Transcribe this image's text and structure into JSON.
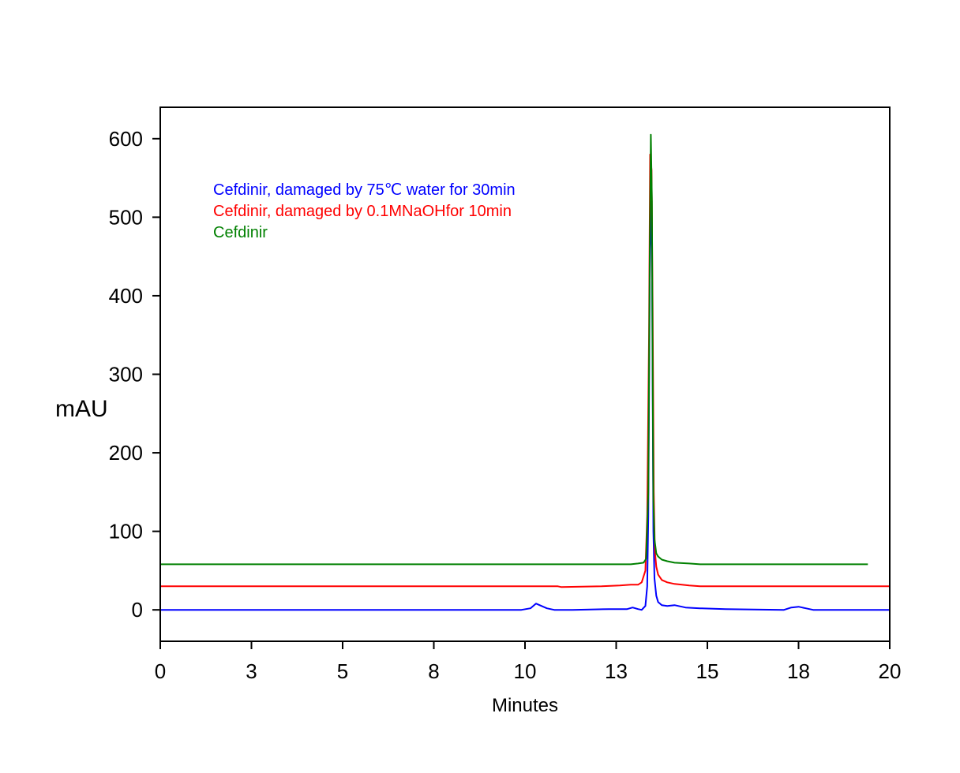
{
  "chart_data": {
    "type": "line",
    "xlabel": "Minutes",
    "ylabel": "mAU",
    "xlim": [
      0,
      20
    ],
    "ylim": [
      -40,
      640
    ],
    "x_ticks": [
      0,
      2.5,
      5,
      7.5,
      10,
      12.5,
      15,
      17.5,
      20
    ],
    "x_tick_labels": [
      "0",
      "3",
      "5",
      "8",
      "10",
      "13",
      "15",
      "18",
      "20"
    ],
    "y_ticks": [
      0,
      100,
      200,
      300,
      400,
      500,
      600
    ],
    "y_tick_labels": [
      "0",
      "100",
      "200",
      "300",
      "400",
      "500",
      "600"
    ],
    "grid": false,
    "legend_position": "top-left",
    "series": [
      {
        "name": "Cefdinir, damaged by 75℃ water for 30min",
        "color": "#0000ff",
        "x": [
          0,
          9.9,
          10.15,
          10.3,
          10.45,
          10.6,
          10.8,
          11.3,
          12.3,
          12.8,
          12.95,
          13.1,
          13.2,
          13.3,
          13.35,
          13.38,
          13.42,
          13.45,
          13.48,
          13.5,
          13.52,
          13.55,
          13.6,
          13.65,
          13.75,
          13.9,
          14.1,
          14.4,
          14.8,
          15.5,
          17.1,
          17.3,
          17.5,
          17.7,
          17.9,
          20
        ],
        "y": [
          0,
          0,
          2,
          8,
          5,
          2,
          0,
          0,
          1,
          1,
          3,
          1,
          0,
          5,
          30,
          120,
          420,
          520,
          460,
          280,
          100,
          40,
          18,
          10,
          6,
          5,
          6,
          3,
          2,
          1,
          0,
          3,
          4,
          2,
          0,
          0
        ]
      },
      {
        "name": "Cefdinir, damaged by 0.1MNaOHfor 10min",
        "color": "#ff0000",
        "x": [
          0,
          5.3,
          7.7,
          10.9,
          11,
          12.1,
          12.6,
          12.9,
          13.1,
          13.2,
          13.3,
          13.35,
          13.4,
          13.43,
          13.47,
          13.5,
          13.53,
          13.56,
          13.6,
          13.65,
          13.75,
          13.9,
          14.1,
          14.3,
          14.5,
          14.8,
          15.5,
          20
        ],
        "y": [
          30,
          30,
          30,
          30,
          29,
          30,
          31,
          32,
          32,
          35,
          50,
          120,
          350,
          580,
          560,
          380,
          150,
          75,
          55,
          45,
          38,
          35,
          33,
          32,
          31,
          30,
          30,
          30
        ]
      },
      {
        "name": "Cefdinir",
        "color": "#008000",
        "x": [
          0,
          12.6,
          12.9,
          13.1,
          13.25,
          13.32,
          13.38,
          13.42,
          13.45,
          13.48,
          13.5,
          13.52,
          13.55,
          13.6,
          13.65,
          13.75,
          13.9,
          14.1,
          14.5,
          14.8,
          15.1,
          15.4,
          15.8,
          19.4
        ],
        "y": [
          58,
          58,
          58,
          59,
          60,
          65,
          150,
          450,
          605,
          520,
          300,
          140,
          90,
          72,
          68,
          64,
          62,
          60,
          59,
          58,
          58,
          58,
          58,
          58
        ]
      }
    ]
  },
  "legend": [
    {
      "label": "Cefdinir, damaged by 75℃ water for 30min",
      "color": "#0000ff"
    },
    {
      "label": "Cefdinir, damaged by 0.1MNaOHfor 10min",
      "color": "#ff0000"
    },
    {
      "label": "Cefdinir",
      "color": "#008000"
    }
  ]
}
